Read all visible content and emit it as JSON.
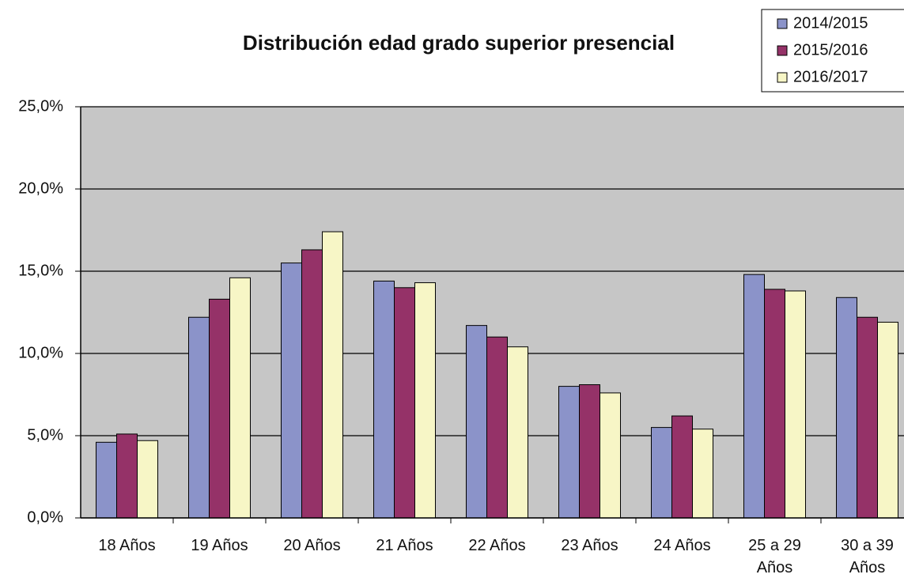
{
  "chart_data": {
    "type": "bar",
    "title": "Distribución edad grado superior presencial",
    "categories": [
      "18 Años",
      "19 Años",
      "20 Años",
      "21 Años",
      "22 Años",
      "23 Años",
      "24 Años",
      "25 a 29 Años",
      "30 a 39 Años"
    ],
    "series": [
      {
        "name": "2014/2015",
        "color": "#8b93c9",
        "values": [
          4.6,
          12.2,
          15.5,
          14.4,
          11.7,
          8.0,
          5.5,
          14.8,
          13.4
        ]
      },
      {
        "name": "2015/2016",
        "color": "#953268",
        "values": [
          5.1,
          13.3,
          16.3,
          14.0,
          11.0,
          8.1,
          6.2,
          13.9,
          12.2
        ]
      },
      {
        "name": "2016/2017",
        "color": "#f7f6c6",
        "values": [
          4.7,
          14.6,
          17.4,
          14.3,
          10.4,
          7.6,
          5.4,
          13.8,
          11.9
        ]
      }
    ],
    "ylim": [
      0,
      25
    ],
    "yticks": [
      {
        "value": 0,
        "label": "0,0%"
      },
      {
        "value": 5,
        "label": "5,0%"
      },
      {
        "value": 10,
        "label": "10,0%"
      },
      {
        "value": 15,
        "label": "15,0%"
      },
      {
        "value": 20,
        "label": "20,0%"
      },
      {
        "value": 25,
        "label": "25,0%"
      }
    ],
    "grid": true,
    "legend": "top-right",
    "background": "#c6c6c6"
  }
}
